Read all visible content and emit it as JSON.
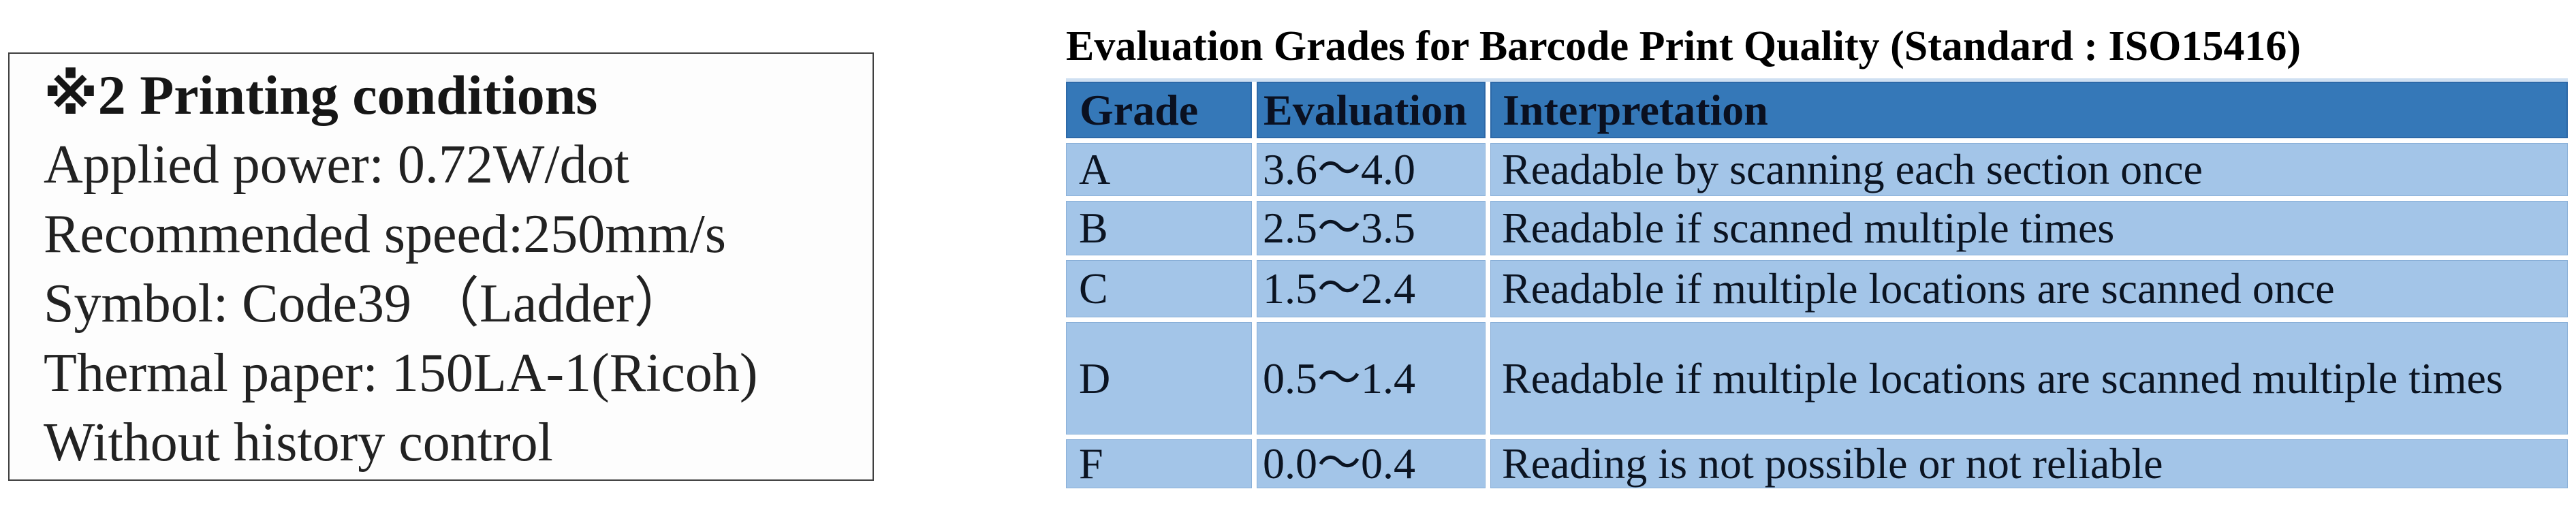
{
  "conditions_box": {
    "title": "※2 Printing conditions",
    "lines": [
      "Applied power: 0.72W/dot",
      "Recommended speed:250mm/s",
      "Symbol: Code39 （Ladder）",
      "Thermal paper: 150LA-1(Ricoh)",
      "Without history control"
    ]
  },
  "grade_table": {
    "title": "Evaluation Grades for Barcode Print Quality (Standard : ISO15416)",
    "columns": [
      "Grade",
      "Evaluation",
      "Interpretation"
    ],
    "rows": [
      {
        "grade": "A",
        "evaluation": "3.6〜4.0",
        "interpretation": "Readable by scanning each section once"
      },
      {
        "grade": "B",
        "evaluation": "2.5〜3.5",
        "interpretation": "Readable if scanned multiple times"
      },
      {
        "grade": "C",
        "evaluation": "1.5〜2.4",
        "interpretation": "Readable if multiple locations are scanned once"
      },
      {
        "grade": "D",
        "evaluation": "0.5〜1.4",
        "interpretation": "Readable if multiple locations are scanned multiple times"
      },
      {
        "grade": "F",
        "evaluation": "0.0〜0.4",
        "interpretation": "Reading is not possible or not reliable"
      }
    ]
  },
  "colors": {
    "header_bg": "#3578b8",
    "row_bg": "#a3c5e8",
    "header_top_strip": "#cfe0f2",
    "table_text": "#0b1422",
    "box_border": "#3f3f3f",
    "page_bg": "#ffffff"
  }
}
